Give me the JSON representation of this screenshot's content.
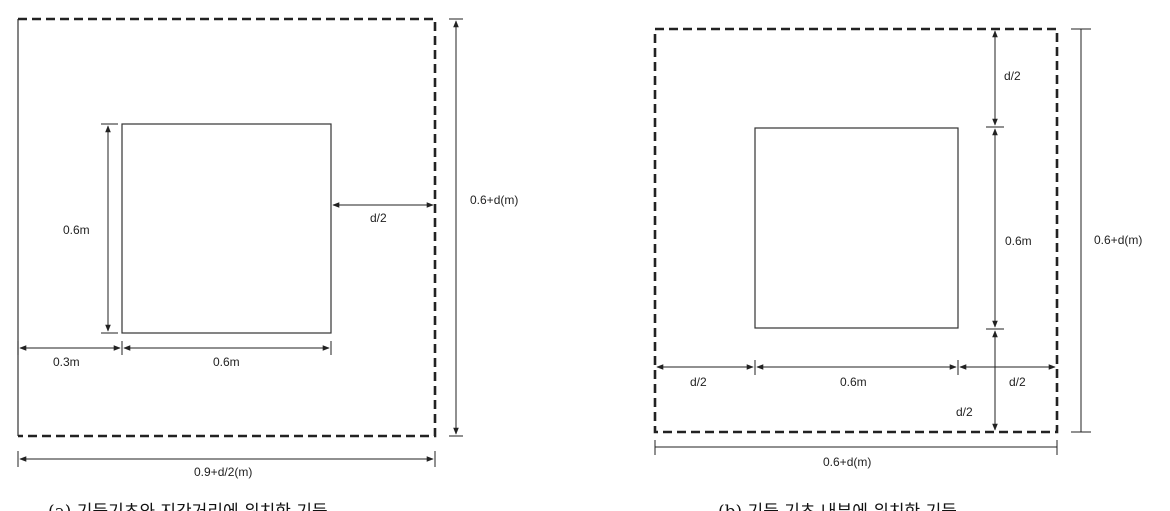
{
  "figure_a": {
    "labels": {
      "inner_height": "0.6m",
      "right_gap": "d/2",
      "total_height": "0.6+d(m)",
      "left_gap": "0.3m",
      "inner_width": "0.6m",
      "total_width": "0.9+d/2(m)"
    },
    "caption": "(a) 기둥기초와 지간거리에 위치한 기둥"
  },
  "figure_b": {
    "labels": {
      "top_gap": "d/2",
      "inner_height": "0.6m",
      "total_height": "0.6+d(m)",
      "left_gap": "d/2",
      "inner_width": "0.6m",
      "right_gap": "d/2",
      "bottom_gap": "d/2",
      "total_width": "0.6+d(m)"
    },
    "caption": "(b) 기둥 기초 내부에 위치한 기둥"
  },
  "colors": {
    "line": "#222222",
    "background": "#ffffff"
  }
}
